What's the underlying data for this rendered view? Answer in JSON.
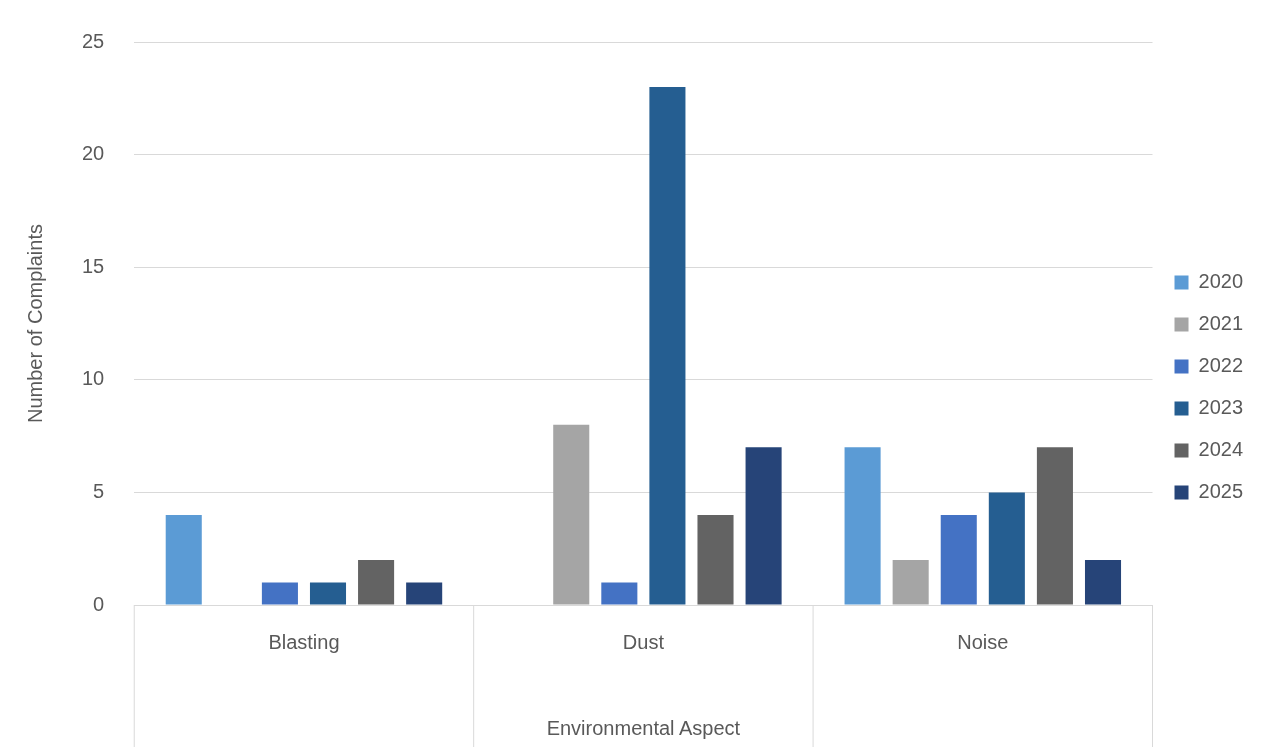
{
  "chart_data": {
    "type": "bar",
    "xlabel": "Environmental Aspect",
    "ylabel": "Number of Complaints",
    "categories": [
      "Blasting",
      "Dust",
      "Noise"
    ],
    "series": [
      {
        "name": "2020",
        "color": "#5b9bd5",
        "values": [
          4,
          0,
          7
        ]
      },
      {
        "name": "2021",
        "color": "#a5a5a5",
        "values": [
          0,
          8,
          2
        ]
      },
      {
        "name": "2022",
        "color": "#4472c4",
        "values": [
          1,
          1,
          4
        ]
      },
      {
        "name": "2023",
        "color": "#255e91",
        "values": [
          1,
          23,
          5
        ]
      },
      {
        "name": "2024",
        "color": "#636363",
        "values": [
          2,
          4,
          7
        ]
      },
      {
        "name": "2025",
        "color": "#264478",
        "values": [
          1,
          7,
          2
        ]
      }
    ],
    "ylim": [
      0,
      25
    ],
    "yticks": [
      0,
      5,
      10,
      15,
      20,
      25
    ],
    "grid": "y",
    "legend": "right"
  }
}
